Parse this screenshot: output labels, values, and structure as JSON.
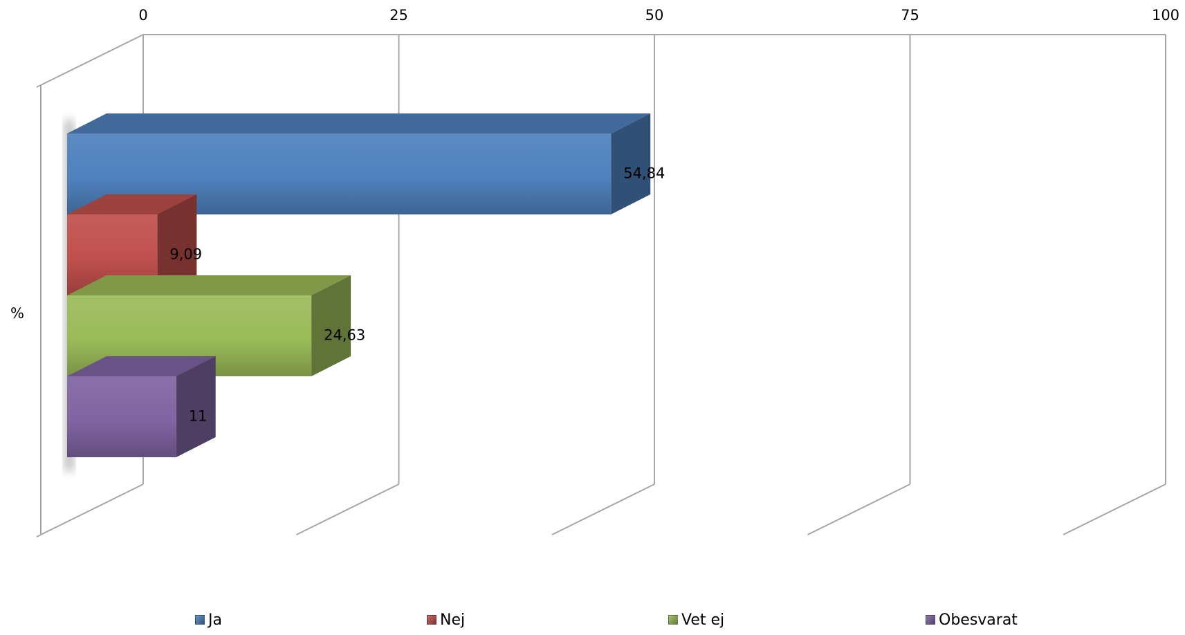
{
  "chart_data": {
    "type": "bar",
    "orientation": "horizontal",
    "style": "3d-clustered",
    "category_label": "%",
    "categories": [
      "%"
    ],
    "series": [
      {
        "name": "Ja",
        "values": [
          54.84
        ],
        "label": "54,84",
        "color": "#4F81BD"
      },
      {
        "name": "Nej",
        "values": [
          9.09
        ],
        "label": "9,09",
        "color": "#C0504D"
      },
      {
        "name": "Vet ej",
        "values": [
          24.63
        ],
        "label": "24,63",
        "color": "#9BBB59"
      },
      {
        "name": "Obesvarat",
        "values": [
          11
        ],
        "label": "11",
        "color": "#8064A2"
      }
    ],
    "xlim": [
      0,
      100
    ],
    "x_ticks": [
      "0",
      "25",
      "50",
      "75",
      "100"
    ],
    "grid": true,
    "legend": "bottom"
  }
}
